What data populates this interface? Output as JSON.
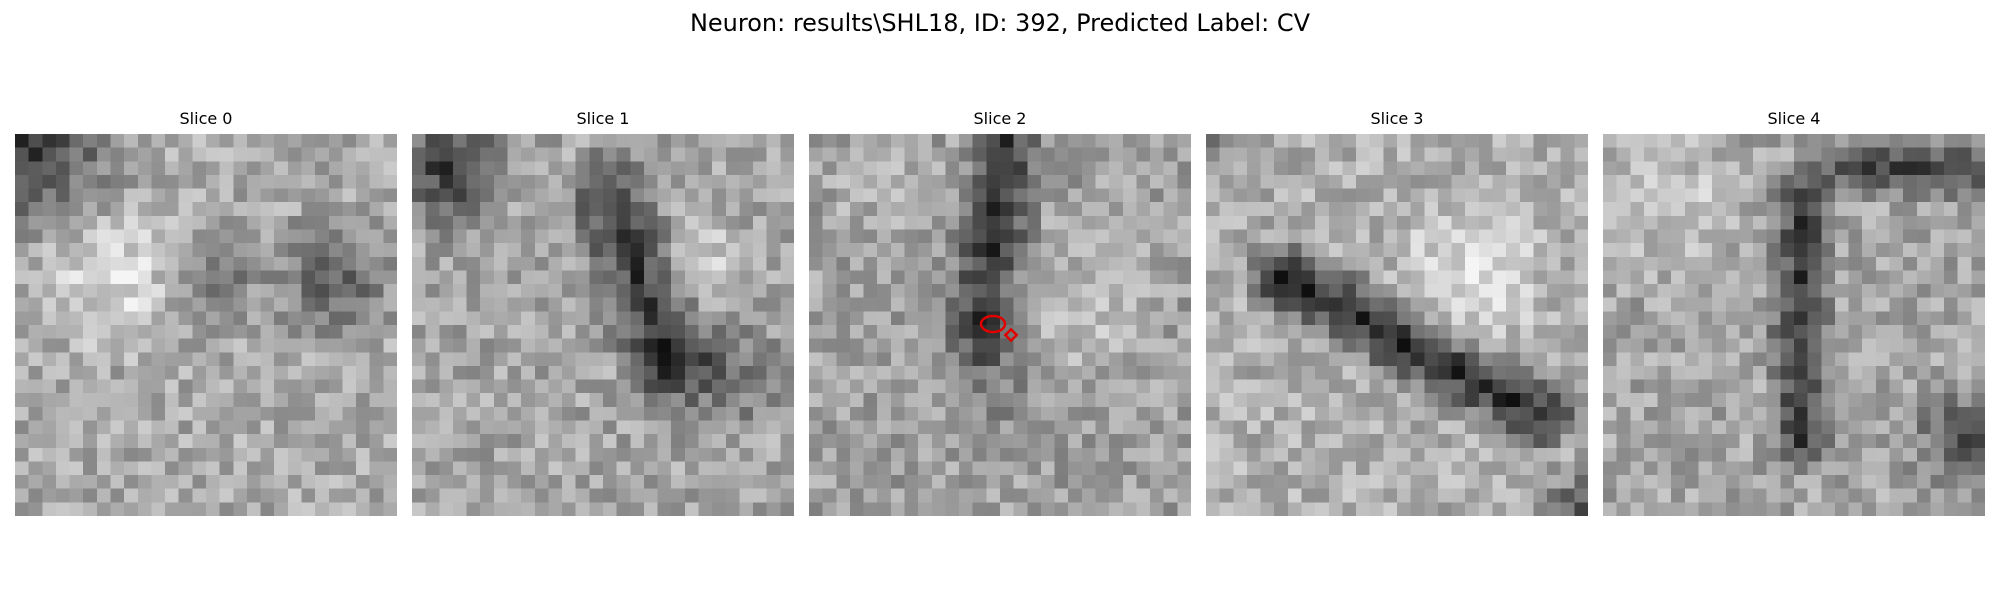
{
  "figure": {
    "title": "Neuron: results\\SHL18, ID: 392, Predicted Label: CV"
  },
  "slices": [
    {
      "label": "Slice 0"
    },
    {
      "label": "Slice 1"
    },
    {
      "label": "Slice 2"
    },
    {
      "label": "Slice 3"
    },
    {
      "label": "Slice 4"
    }
  ],
  "colormap": "gray",
  "annotation_color": "#e00000"
}
